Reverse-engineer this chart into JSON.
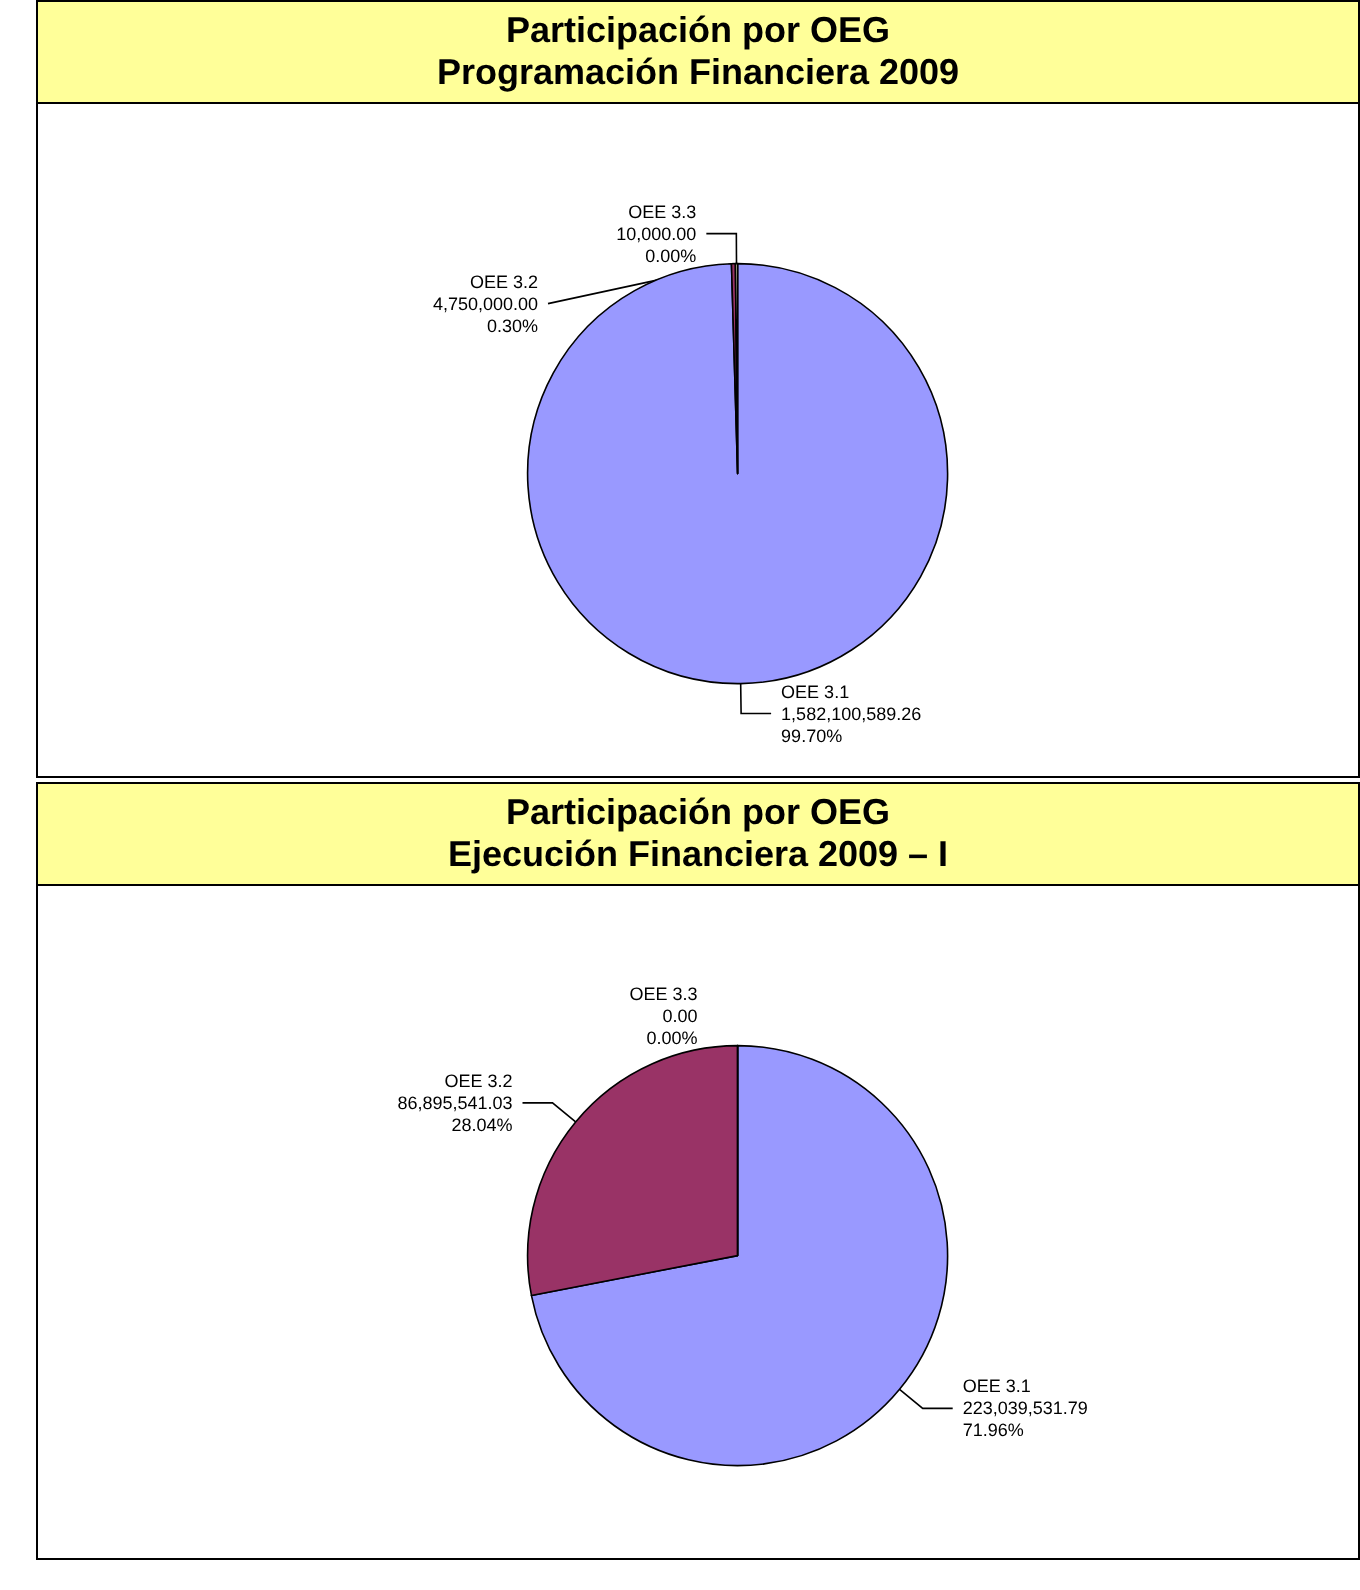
{
  "chart_data": [
    {
      "type": "pie",
      "title": "Participación por OEG",
      "subtitle": "Programación Financiera 2009",
      "categories": [
        "OEE 3.1",
        "OEE 3.2",
        "OEE 3.3"
      ],
      "values": [
        1582100589.26,
        4750000.0,
        10000.0
      ],
      "colors": [
        "#9999ff",
        "#993366",
        "#ffffcc"
      ],
      "value_labels": [
        "1,582,100,589.26\n99.70%",
        "4,750,000.00\n0.30%",
        "10,000.00\n0.00%"
      ],
      "legend": false
    },
    {
      "type": "pie",
      "title": "Participación por OEG",
      "subtitle": "Ejecución Financiera 2009 – I",
      "categories": [
        "OEE 3.1",
        "OEE 3.2",
        "OEE 3.3"
      ],
      "values": [
        223039531.79,
        86895541.03,
        0.0
      ],
      "colors": [
        "#9999ff",
        "#993366",
        "#ffffcc"
      ],
      "value_labels": [
        "223,039,531.79\n71.96%",
        "86,895,541.03\n28.04%",
        "0.00\n0.00%"
      ],
      "legend": false
    }
  ]
}
